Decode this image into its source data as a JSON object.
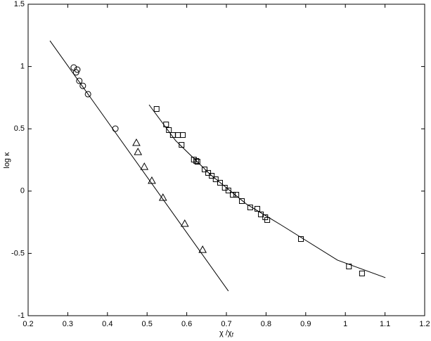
{
  "chart_data": {
    "type": "scatter",
    "xlabel": {
      "base": "χ /χ",
      "sub": "f"
    },
    "ylabel": "log κ",
    "xlim": [
      0.2,
      1.2
    ],
    "xticks": [
      0.2,
      0.3,
      0.4,
      0.5,
      0.6,
      0.7,
      0.8,
      0.9,
      1,
      1.1,
      1.2
    ],
    "ylim": [
      -1,
      1.5
    ],
    "yticks": [
      -1,
      -0.5,
      0,
      0.5,
      1,
      1.5
    ],
    "color": "#000000",
    "series": [
      {
        "marker": "circle",
        "x": [
          0.315,
          0.321,
          0.324,
          0.329,
          0.338,
          0.351,
          0.42
        ],
        "values": [
          0.992,
          0.953,
          0.975,
          0.885,
          0.845,
          0.778,
          0.501
        ]
      },
      {
        "marker": "triangle",
        "x": [
          0.473,
          0.477,
          0.493,
          0.512,
          0.54,
          0.595,
          0.64
        ],
        "values": [
          0.388,
          0.315,
          0.196,
          0.084,
          -0.052,
          -0.261,
          -0.47
        ]
      },
      {
        "marker": "square",
        "x": [
          0.524,
          0.548,
          0.555,
          0.565,
          0.578,
          0.59,
          0.587,
          0.618,
          0.624,
          0.627,
          0.645,
          0.654,
          0.663,
          0.673,
          0.684,
          0.696,
          0.705,
          0.716,
          0.725,
          0.739,
          0.76,
          0.778,
          0.787,
          0.798,
          0.803,
          0.888,
          1.009,
          1.042
        ],
        "values": [
          0.659,
          0.535,
          0.49,
          0.45,
          0.45,
          0.45,
          0.371,
          0.253,
          0.242,
          0.236,
          0.174,
          0.146,
          0.123,
          0.095,
          0.067,
          0.027,
          0.005,
          -0.029,
          -0.029,
          -0.08,
          -0.131,
          -0.142,
          -0.187,
          -0.21,
          -0.232,
          -0.385,
          -0.605,
          -0.661
        ]
      },
      {
        "marker": "line",
        "x": [
          0.255,
          0.705
        ],
        "values": [
          1.207,
          -0.802
        ]
      },
      {
        "marker": "line",
        "x": [
          0.505,
          0.572,
          0.661,
          0.75,
          0.838,
          0.98,
          1.101
        ],
        "values": [
          0.693,
          0.405,
          0.129,
          -0.103,
          -0.272,
          -0.554,
          -0.695
        ]
      }
    ]
  }
}
